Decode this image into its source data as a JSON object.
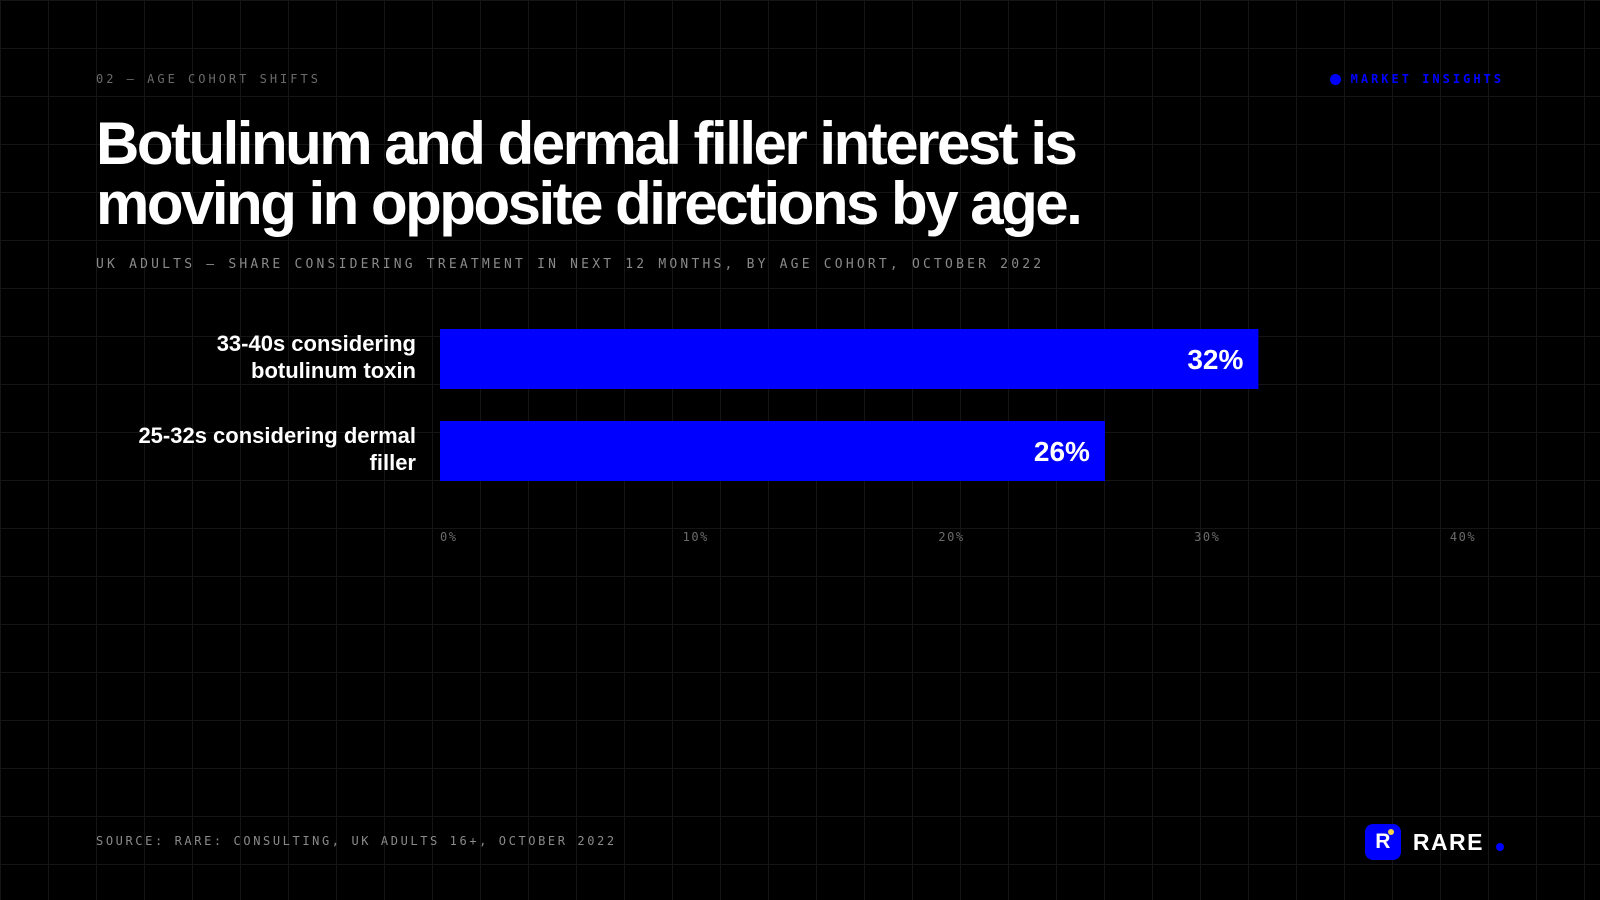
{
  "header": {
    "kicker": "02 — AGE COHORT SHIFTS",
    "tag": "MARKET INSIGHTS"
  },
  "title": {
    "line1": "Botulinum and dermal filler interest is",
    "line2": "moving in opposite directions by age."
  },
  "subtitle": "UK ADULTS — SHARE CONSIDERING TREATMENT IN NEXT 12 MONTHS, BY AGE COHORT, OCTOBER 2022",
  "chart_data": {
    "type": "bar",
    "orientation": "horizontal",
    "categories": [
      [
        "33-40s considering",
        "botulinum toxin"
      ],
      [
        "25-32s considering dermal",
        "filler"
      ]
    ],
    "values": [
      32,
      26
    ],
    "value_labels": [
      "32%",
      "26%"
    ],
    "xlim": [
      0,
      40
    ],
    "xticks": [
      0,
      10,
      20,
      30,
      40
    ],
    "xtick_labels": [
      "0%",
      "10%",
      "20%",
      "30%",
      "40%"
    ],
    "grid": false,
    "legend": "none"
  },
  "footer": {
    "source": "SOURCE: RARE: CONSULTING, UK ADULTS 16+, OCTOBER 2022",
    "logo_mark": "R",
    "logo_word": "RARE"
  },
  "colors": {
    "background": "#000000",
    "accent": "#0000FF",
    "logo_spot": "#F5D547",
    "text": "#FFFFFF",
    "muted": "#8A8A8A",
    "tick": "#6B6B6B"
  }
}
